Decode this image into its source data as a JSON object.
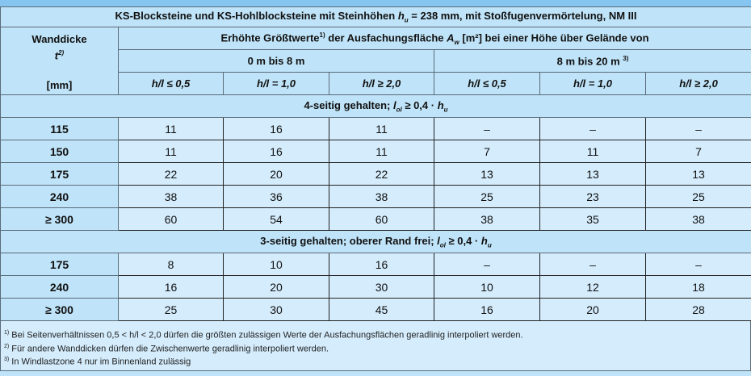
{
  "title": {
    "pre": "KS-Blocksteine und KS-Hohlblocksteine mit Steinhöhen ",
    "var": "h",
    "sub": "u",
    "post": " = 238 mm, mit Stoßfugenvermörtelung, NM III"
  },
  "header": {
    "wanddicke": "Wanddicke",
    "t": "t",
    "t_sup": "2)",
    "unit": "[mm]",
    "main_pre": "Erhöhte Größtwerte",
    "main_sup": "1)",
    "main_mid": " der Ausfachungsfläche ",
    "main_var": "A",
    "main_sub": "w",
    "main_post": " [m²] bei einer Höhe über Gelände von",
    "range1": "0 m bis 8 m",
    "range2": "8 m bis 20 m",
    "range2_sup": "3)",
    "ratios": [
      "h/l ≤ 0,5",
      "h/l = 1,0",
      "h/l ≥ 2,0",
      "h/l ≤ 0,5",
      "h/l = 1,0",
      "h/l ≥ 2,0"
    ]
  },
  "sections": [
    {
      "label_pre": "4-seitig gehalten; ",
      "var": "l",
      "sub": "ol",
      "post": " ≥ 0,4 · ",
      "var2": "h",
      "sub2": "u",
      "rows": [
        {
          "t": "115",
          "values": [
            "11",
            "16",
            "11",
            "–",
            "–",
            "–"
          ]
        },
        {
          "t": "150",
          "values": [
            "11",
            "16",
            "11",
            "7",
            "11",
            "7"
          ]
        },
        {
          "t": "175",
          "values": [
            "22",
            "20",
            "22",
            "13",
            "13",
            "13"
          ]
        },
        {
          "t": "240",
          "values": [
            "38",
            "36",
            "38",
            "25",
            "23",
            "25"
          ]
        },
        {
          "t": "≥ 300",
          "values": [
            "60",
            "54",
            "60",
            "38",
            "35",
            "38"
          ]
        }
      ]
    },
    {
      "label_pre": "3-seitig gehalten; oberer Rand frei; ",
      "var": "l",
      "sub": "ol",
      "post": " ≥ 0,4 · ",
      "var2": "h",
      "sub2": "u",
      "rows": [
        {
          "t": "175",
          "values": [
            "8",
            "10",
            "16",
            "–",
            "–",
            "–"
          ]
        },
        {
          "t": "240",
          "values": [
            "16",
            "20",
            "30",
            "10",
            "12",
            "18"
          ]
        },
        {
          "t": "≥ 300",
          "values": [
            "25",
            "30",
            "45",
            "16",
            "20",
            "28"
          ]
        }
      ]
    }
  ],
  "footnotes": [
    {
      "mark": "1)",
      "text": " Bei Seitenverhältnissen 0,5 < h/l < 2,0 dürfen die größten zulässigen Werte der Ausfachungsflächen geradlinig interpoliert werden."
    },
    {
      "mark": "2)",
      "text": " Für andere Wanddicken dürfen die Zwischenwerte geradlinig interpoliert werden."
    },
    {
      "mark": "3)",
      "text": " In Windlastzone 4 nur im Binnenland zulässig"
    }
  ],
  "colors": {
    "header_bg": "#bfe3f8",
    "cell_bg": "#d4ecfc",
    "strip": "#85c5f0"
  }
}
